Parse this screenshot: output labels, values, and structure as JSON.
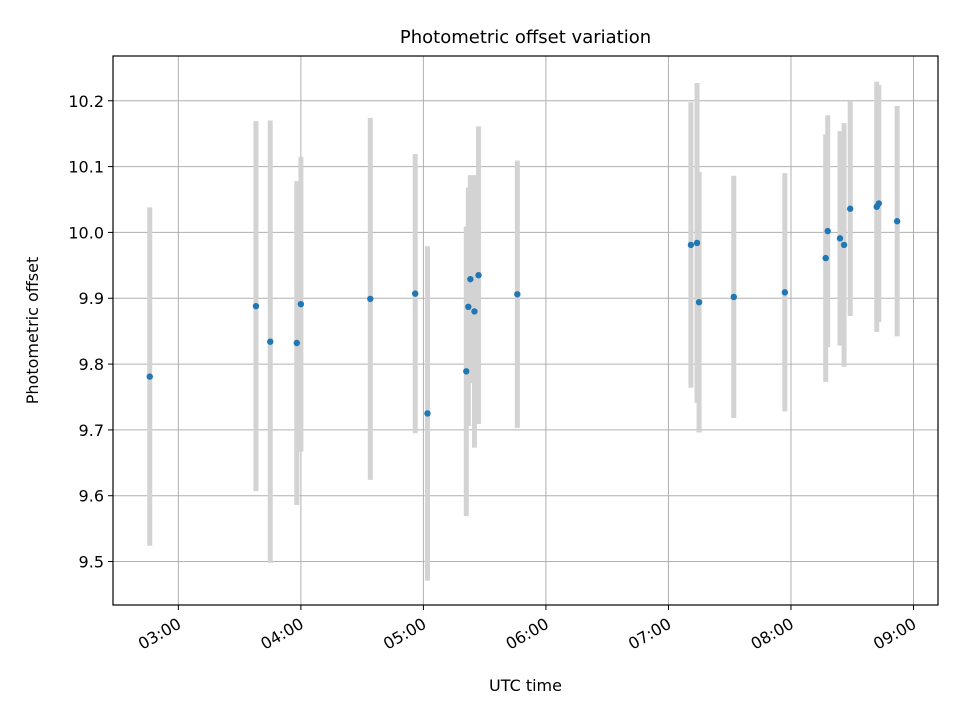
{
  "chart_data": {
    "type": "scatter",
    "title": "Photometric offset variation",
    "xlabel": "UTC time",
    "ylabel": "Photometric offset",
    "xlim": [
      "02:28",
      "09:12"
    ],
    "ylim": [
      9.434,
      10.268
    ],
    "xticks": [
      "03:00",
      "04:00",
      "05:00",
      "06:00",
      "07:00",
      "08:00",
      "09:00"
    ],
    "yticks": [
      "9.5",
      "9.6",
      "9.7",
      "9.8",
      "9.9",
      "10.0",
      "10.1",
      "10.2"
    ],
    "grid": true,
    "marker_color": "#1f77b4",
    "errorbar_color": "#d3d3d3",
    "points": [
      {
        "x": "02:46",
        "y": 9.781,
        "err": 0.257
      },
      {
        "x": "03:38",
        "y": 9.888,
        "err": 0.281
      },
      {
        "x": "03:45",
        "y": 9.834,
        "err": 0.336
      },
      {
        "x": "03:58",
        "y": 9.832,
        "err": 0.246
      },
      {
        "x": "04:00",
        "y": 9.891,
        "err": 0.224
      },
      {
        "x": "04:34",
        "y": 9.899,
        "err": 0.275
      },
      {
        "x": "04:56",
        "y": 9.907,
        "err": 0.212
      },
      {
        "x": "05:02",
        "y": 9.725,
        "err": 0.254
      },
      {
        "x": "05:21",
        "y": 9.789,
        "err": 0.22
      },
      {
        "x": "05:22",
        "y": 9.887,
        "err": 0.181
      },
      {
        "x": "05:23",
        "y": 9.929,
        "err": 0.158
      },
      {
        "x": "05:25",
        "y": 9.88,
        "err": 0.207
      },
      {
        "x": "05:27",
        "y": 9.935,
        "err": 0.226
      },
      {
        "x": "05:46",
        "y": 9.906,
        "err": 0.203
      },
      {
        "x": "07:11",
        "y": 9.981,
        "err": 0.217
      },
      {
        "x": "07:14",
        "y": 9.984,
        "err": 0.243
      },
      {
        "x": "07:15",
        "y": 9.894,
        "err": 0.198
      },
      {
        "x": "07:32",
        "y": 9.902,
        "err": 0.184
      },
      {
        "x": "07:57",
        "y": 9.909,
        "err": 0.181
      },
      {
        "x": "08:17",
        "y": 9.961,
        "err": 0.188
      },
      {
        "x": "08:18",
        "y": 10.002,
        "err": 0.176
      },
      {
        "x": "08:24",
        "y": 9.991,
        "err": 0.163
      },
      {
        "x": "08:26",
        "y": 9.981,
        "err": 0.185
      },
      {
        "x": "08:29",
        "y": 10.036,
        "err": 0.163
      },
      {
        "x": "08:42",
        "y": 10.039,
        "err": 0.19
      },
      {
        "x": "08:43",
        "y": 10.044,
        "err": 0.18
      },
      {
        "x": "08:52",
        "y": 10.017,
        "err": 0.175
      }
    ]
  }
}
